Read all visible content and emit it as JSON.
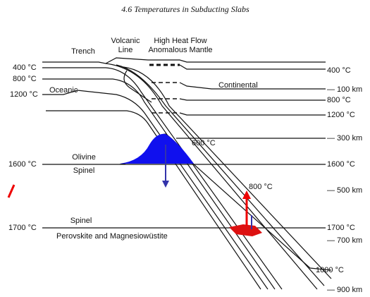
{
  "header": {
    "title": "4.6  Temperatures in Subducting Slabs"
  },
  "labels": {
    "trench": "Trench",
    "volcanic_line": [
      "Volcanic",
      "Line"
    ],
    "high_heat_flow": [
      "High Heat Flow",
      "Anomalous Mantle"
    ],
    "oceanic": "Oceanic",
    "continental": "Continental",
    "left_isotherms": [
      "400 °C",
      "800 °C",
      "1200 °C"
    ],
    "right_isotherms": [
      "400 °C",
      "800 °C",
      "1200 °C"
    ],
    "depths": [
      "— 100 km",
      "— 300 km",
      "— 500 km",
      "— 700 km",
      "— 900 km"
    ],
    "slab_isotherms": [
      "600 °C",
      "800 °C",
      "1000 °C"
    ],
    "olivine": "Olivine",
    "spinel_upper": "Spinel",
    "spinel_lower": "Spinel",
    "perovskite": "Perovskite and Magnesiowüstite",
    "transition_1600_left": "1600 °C",
    "transition_1600_right": "1600 °C",
    "transition_1700_left": "1700 °C",
    "transition_1700_right": "1700 °C"
  }
}
